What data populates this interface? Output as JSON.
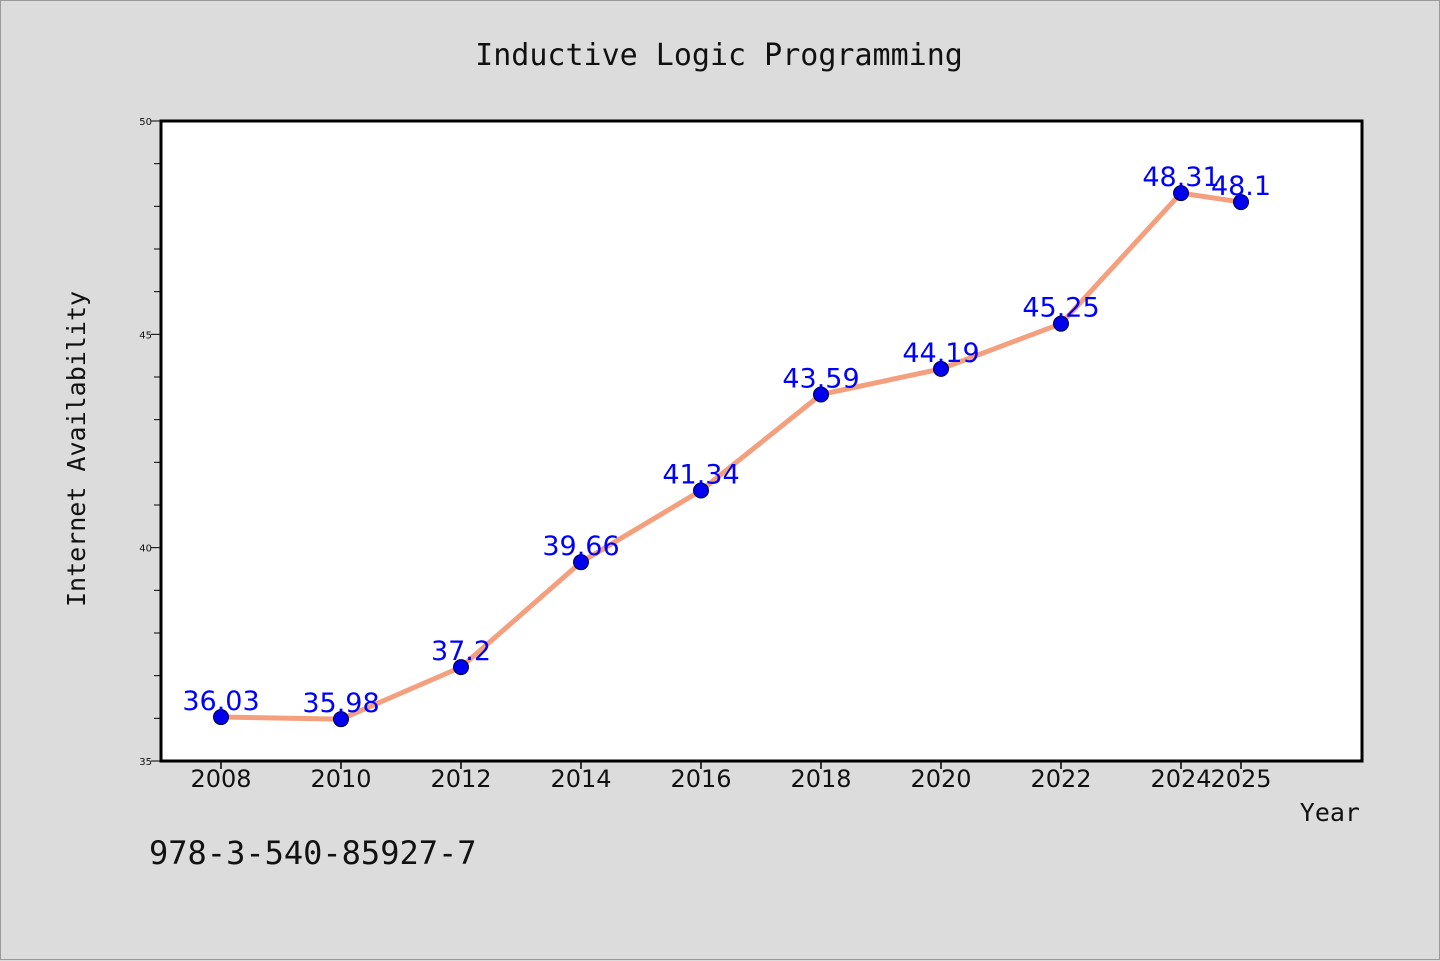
{
  "chart_data": {
    "type": "line",
    "title": "Inductive Logic Programming",
    "xlabel": "Year",
    "ylabel": "Internet Availability",
    "x": [
      "2008",
      "2010",
      "2012",
      "2014",
      "2016",
      "2018",
      "2020",
      "2022",
      "2024",
      "2025"
    ],
    "series": [
      {
        "values": [
          36.03,
          35.98,
          37.2,
          39.66,
          41.34,
          43.59,
          44.19,
          45.25,
          48.31,
          48.1
        ],
        "value_labels": [
          "36.03",
          "35.98",
          "37.2",
          "39.66",
          "41.34",
          "43.59",
          "44.19",
          "45.25",
          "48.31",
          "48.1"
        ],
        "line_color": "#f4a07e",
        "marker_color": "#0000ee"
      }
    ],
    "ylim": [
      35,
      50
    ],
    "y_ticks": [
      "35",
      "40",
      "45",
      "50"
    ],
    "grid": false,
    "label_color": "#0000ff"
  },
  "footnote": "978-3-540-85927-7"
}
